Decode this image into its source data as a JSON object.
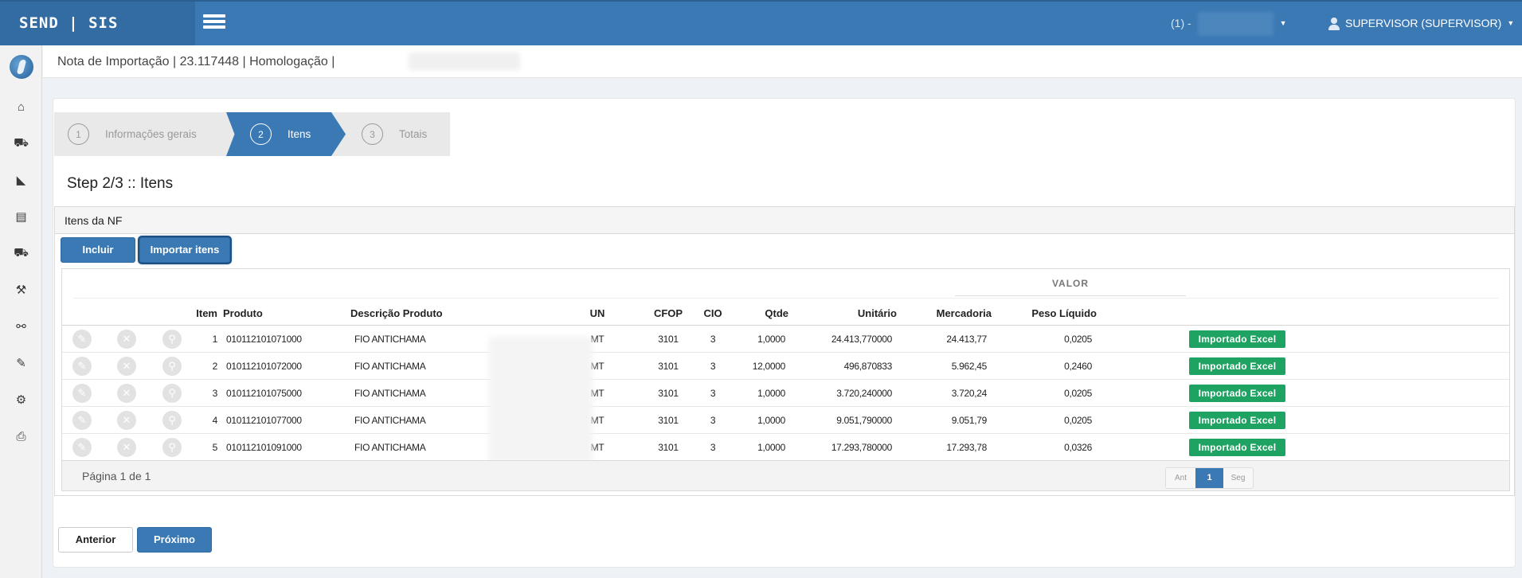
{
  "topbar": {
    "brand": "SEND | SIS",
    "company_label": "(1) -",
    "user_label": "SUPERVISOR (SUPERVISOR)"
  },
  "sidebar": {
    "items": [
      {
        "icon": "home-icon",
        "glyph": "⌂"
      },
      {
        "icon": "truck-icon",
        "glyph": "⛟"
      },
      {
        "icon": "area-chart-icon",
        "glyph": "◣"
      },
      {
        "icon": "newspaper-icon",
        "glyph": "▤"
      },
      {
        "icon": "truck-icon",
        "glyph": "⛟"
      },
      {
        "icon": "gavel-icon",
        "glyph": "⚒"
      },
      {
        "icon": "binoculars-icon",
        "glyph": "⚯"
      },
      {
        "icon": "wrench-icon",
        "glyph": "✎"
      },
      {
        "icon": "cogs-icon",
        "glyph": "⚙"
      },
      {
        "icon": "print-icon",
        "glyph": "⎙"
      }
    ]
  },
  "breadcrumb": "Nota de Importação | 23.117448 | Homologação |",
  "wizard": {
    "steps": [
      {
        "num": "1",
        "label": "Informações gerais"
      },
      {
        "num": "2",
        "label": "Itens"
      },
      {
        "num": "3",
        "label": "Totais"
      }
    ],
    "title": "Step 2/3 :: Itens"
  },
  "items_section": {
    "header": "Itens da NF",
    "btn_incluir": "Incluir",
    "btn_importar": "Importar itens",
    "group_header": "VALOR",
    "columns": {
      "item": "Item",
      "produto": "Produto",
      "descricao": "Descrição Produto",
      "un": "UN",
      "cfop": "CFOP",
      "cio": "CIO",
      "qtde": "Qtde",
      "unitario": "Unitário",
      "mercadoria": "Mercadoria",
      "peso": "Peso Líquido"
    },
    "rows": [
      {
        "item": "1",
        "produto": "010112101071000",
        "descricao": "FIO ANTICHAMA",
        "un": "MT",
        "cfop": "3101",
        "cio": "3",
        "qtde": "1,0000",
        "unitario": "24.413,770000",
        "mercadoria": "24.413,77",
        "peso": "0,0205",
        "status": "Importado Excel"
      },
      {
        "item": "2",
        "produto": "010112101072000",
        "descricao": "FIO ANTICHAMA",
        "un": "MT",
        "cfop": "3101",
        "cio": "3",
        "qtde": "12,0000",
        "unitario": "496,870833",
        "mercadoria": "5.962,45",
        "peso": "0,2460",
        "status": "Importado Excel"
      },
      {
        "item": "3",
        "produto": "010112101075000",
        "descricao": "FIO ANTICHAMA",
        "un": "MT",
        "cfop": "3101",
        "cio": "3",
        "qtde": "1,0000",
        "unitario": "3.720,240000",
        "mercadoria": "3.720,24",
        "peso": "0,0205",
        "status": "Importado Excel"
      },
      {
        "item": "4",
        "produto": "010112101077000",
        "descricao": "FIO ANTICHAMA",
        "un": "MT",
        "cfop": "3101",
        "cio": "3",
        "qtde": "1,0000",
        "unitario": "9.051,790000",
        "mercadoria": "9.051,79",
        "peso": "0,0205",
        "status": "Importado Excel"
      },
      {
        "item": "5",
        "produto": "010112101091000",
        "descricao": "FIO ANTICHAMA",
        "un": "MT",
        "cfop": "3101",
        "cio": "3",
        "qtde": "1,0000",
        "unitario": "17.293,780000",
        "mercadoria": "17.293,78",
        "peso": "0,0326",
        "status": "Importado Excel"
      }
    ],
    "page_info": "Página 1 de 1",
    "pager": {
      "prev": "Ant",
      "current": "1",
      "next": "Seg"
    }
  },
  "footer_buttons": {
    "anterior": "Anterior",
    "proximo": "Próximo"
  },
  "colors": {
    "brand_blue": "#3b79b5",
    "status_green": "#1ea362"
  }
}
